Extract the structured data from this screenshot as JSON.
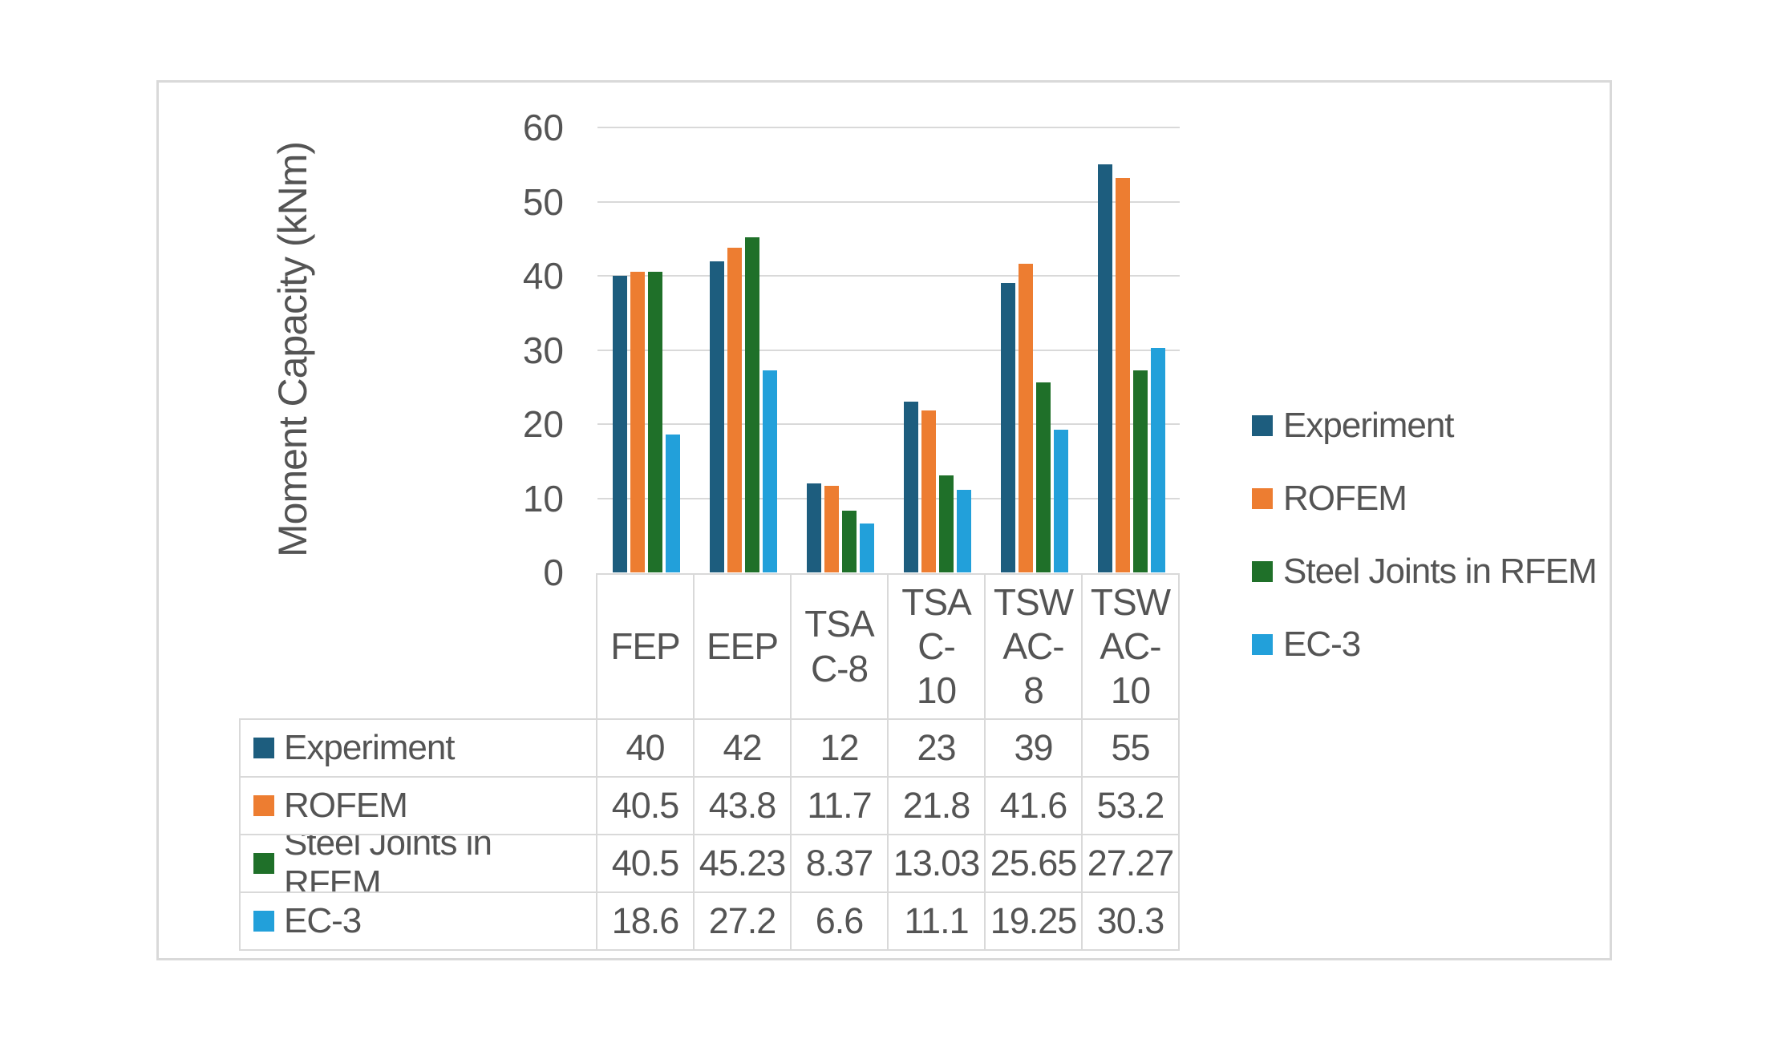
{
  "chart_data": {
    "type": "bar",
    "title": "",
    "xlabel": "",
    "ylabel": "Moment Capacity (kNm)",
    "categories": [
      "FEP",
      "EEP",
      "TSA C-8",
      "TSA C-10",
      "TSW AC-8",
      "TSW AC-10"
    ],
    "category_display": [
      "FEP",
      "EEP",
      "TSA\nC-8",
      "TSA\nC-\n10",
      "TSW\nAC-\n8",
      "TSW\nAC-\n10"
    ],
    "series": [
      {
        "name": "Experiment",
        "color": "#1d5d7e",
        "values": [
          40,
          42,
          12,
          23,
          39,
          55
        ]
      },
      {
        "name": "ROFEM",
        "color": "#ed7d31",
        "values": [
          40.5,
          43.8,
          11.7,
          21.8,
          41.6,
          53.2
        ]
      },
      {
        "name": "Steel Joints in RFEM",
        "color": "#1f7029",
        "values": [
          40.5,
          45.23,
          8.37,
          13.03,
          25.65,
          27.27
        ]
      },
      {
        "name": "EC-3",
        "color": "#22a0da",
        "values": [
          18.6,
          27.2,
          6.6,
          11.1,
          19.25,
          30.3
        ]
      }
    ],
    "ylim": [
      0,
      60
    ],
    "yticks": [
      0,
      10,
      20,
      30,
      40,
      50,
      60
    ],
    "grid": true,
    "legend_position": "right",
    "gridline_color": "#d9d9d9",
    "text_color": "#545454"
  },
  "table": {
    "rows": [
      {
        "label": "Experiment",
        "values": [
          "40",
          "42",
          "12",
          "23",
          "39",
          "55"
        ]
      },
      {
        "label": "ROFEM",
        "values": [
          "40.5",
          "43.8",
          "11.7",
          "21.8",
          "41.6",
          "53.2"
        ]
      },
      {
        "label": "Steel Joints in RFEM",
        "values": [
          "40.5",
          "45.23",
          "8.37",
          "13.03",
          "25.65",
          "27.27"
        ]
      },
      {
        "label": "EC-3",
        "values": [
          "18.6",
          "27.2",
          "6.6",
          "11.1",
          "19.25",
          "30.3"
        ]
      }
    ]
  }
}
